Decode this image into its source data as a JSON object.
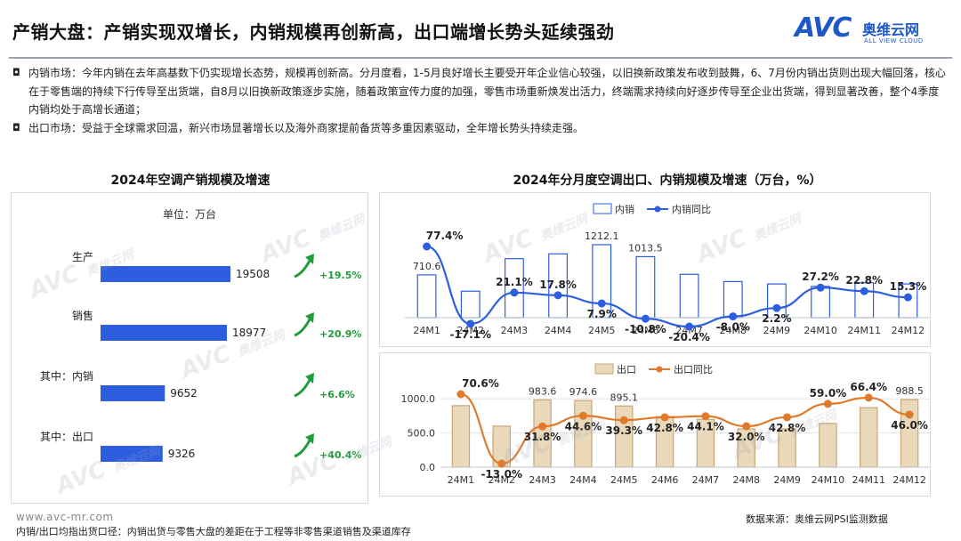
{
  "header": {
    "title": "产销大盘：产销实现双增长，内销规模再创新高，出口端增长势头延续强劲",
    "logo_text": "AVC",
    "logo_cn": "奥维云网",
    "logo_en": "ALL VIEW CLOUD"
  },
  "bullets": [
    {
      "mark": "◘",
      "text": "内销市场：今年内销在去年高基数下仍实现增长态势，规模再创新高。分月度看，1-5月良好增长主要受开年企业信心较强，以旧换新政策发布收到鼓舞，6、7月份内销出货则出现大幅回落，核心在于零售端的持续下行传导至出货端，自8月以旧换新政策逐步实施，随着政策宣传力度的加强，零售市场重新焕发出活力，终端需求持续向好逐步传导至企业出货端，得到显著改善，整个4季度内销均处于高增长通道；"
    },
    {
      "mark": "◘",
      "text": "出口市场：受益于全球需求回温，新兴市场显著增长以及海外商家提前备货等多重因素驱动，全年增长势头持续走强。"
    }
  ],
  "left_chart": {
    "heading": "2024年空调产销规模及增速",
    "unit": "单位：万台"
  },
  "right_chart": {
    "heading": "2024年分月度空调出口、内销规模及增速（万台，%）"
  },
  "chart_data": [
    {
      "type": "bar",
      "orientation": "horizontal",
      "title": "2024年空调产销规模及增速",
      "unit": "单位：万台",
      "categories": [
        "生产",
        "销售",
        "其中：内销",
        "其中：出口"
      ],
      "values": [
        19508,
        18977,
        9652,
        9326
      ],
      "growth_labels": [
        "+19.5%",
        "+20.9%",
        "+6.6%",
        "+40.4%"
      ],
      "color": "#2e5ee0",
      "growth_color": "#1f9d3a"
    },
    {
      "type": "bar+line",
      "title": "2024年分月度空调出口、内销规模及增速（万台，%）",
      "panel": "内销",
      "categories": [
        "24M1",
        "24M2",
        "24M3",
        "24M4",
        "24M5",
        "24M6",
        "24M7",
        "24M8",
        "24M9",
        "24M10",
        "24M11",
        "24M12"
      ],
      "series": [
        {
          "name": "内销",
          "type": "bar",
          "values": [
            710.6,
            440,
            980,
            1060,
            1212.1,
            1013.5,
            720,
            600,
            560,
            520,
            580,
            560
          ],
          "value_labels": [
            "710.6",
            "",
            "",
            "",
            "1212.1",
            "1013.5",
            "",
            "",
            "",
            "",
            "",
            ""
          ],
          "color": "#2e5ee0"
        },
        {
          "name": "内销同比",
          "type": "line",
          "values": [
            77.4,
            -17.1,
            21.1,
            17.8,
            7.9,
            -10.8,
            -20.4,
            -8.0,
            2.2,
            27.2,
            22.8,
            15.3
          ],
          "labels": [
            "77.4%",
            "-17.1%",
            "21.1%",
            "17.8%",
            "7.9%",
            "-10.8%",
            "-20.4%",
            "-8.0%",
            "2.2%",
            "27.2%",
            "22.8%",
            "15.3%"
          ],
          "color": "#2e5ee0"
        }
      ]
    },
    {
      "type": "bar+line",
      "panel": "出口",
      "categories": [
        "24M1",
        "24M2",
        "24M3",
        "24M4",
        "24M5",
        "24M6",
        "24M7",
        "24M8",
        "24M9",
        "24M10",
        "24M11",
        "24M12"
      ],
      "y_ticks": [
        "0.0",
        "500.0",
        "1000.0"
      ],
      "ylim": [
        0,
        1250
      ],
      "series": [
        {
          "name": "出口",
          "type": "bar",
          "values": [
            900,
            600,
            983.6,
            974.6,
            895.1,
            740,
            700,
            560,
            560,
            640,
            870,
            988.5
          ],
          "value_labels": [
            "",
            "",
            "983.6",
            "974.6",
            "895.1",
            "",
            "",
            "",
            "",
            "",
            "",
            "988.5"
          ],
          "color": "#c9a772"
        },
        {
          "name": "出口同比",
          "type": "line",
          "values": [
            70.6,
            -13.0,
            31.8,
            44.6,
            39.3,
            42.8,
            44.1,
            32.0,
            42.8,
            59.0,
            66.4,
            46.0
          ],
          "labels": [
            "70.6%",
            "-13.0%",
            "31.8%",
            "44.6%",
            "39.3%",
            "42.8%",
            "44.1%",
            "32.0%",
            "42.8%",
            "59.0%",
            "66.4%",
            "46.0%"
          ],
          "color": "#e07a2a"
        }
      ]
    }
  ],
  "footer": {
    "website": "www.avc-mr.com",
    "note": "内销/出口均指出货口径：内销出货与零售大盘的差距在于工程等非零售渠道销售及渠道库存",
    "source": "数据来源：奥维云网PSI监测数据"
  }
}
